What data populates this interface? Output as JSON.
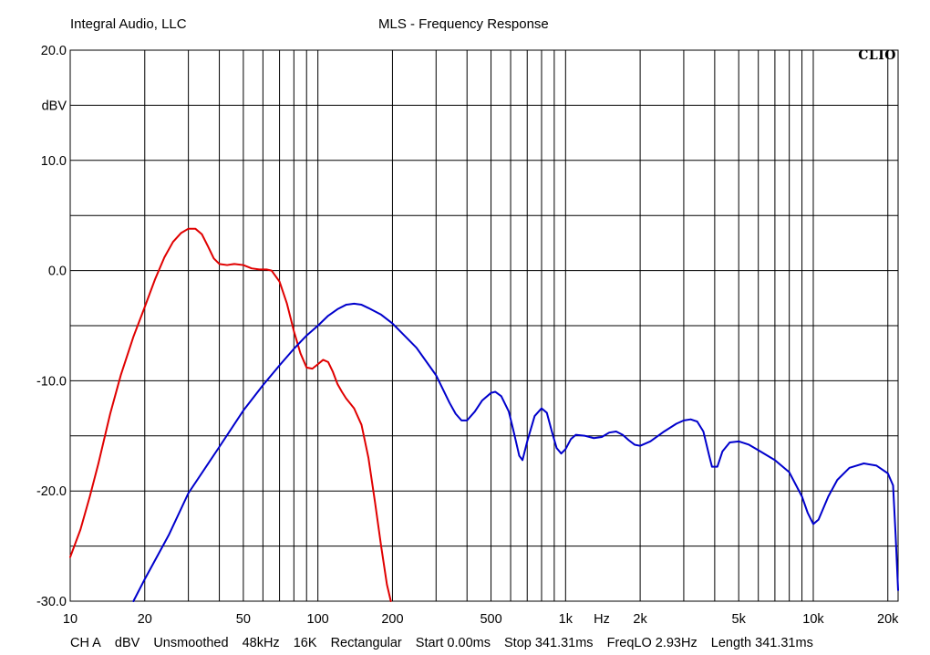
{
  "header": {
    "company": "Integral Audio, LLC",
    "title": "MLS - Frequency Response"
  },
  "brand": "CLIO",
  "footer": {
    "channel": "CH A",
    "unit": "dBV",
    "smoothing": "Unsmoothed",
    "sample_rate": "48kHz",
    "size": "16K",
    "window": "Rectangular",
    "start": "Start 0.00ms",
    "stop": "Stop 341.31ms",
    "freqlo": "FreqLO 2.93Hz",
    "length": "Length 341.31ms"
  },
  "chart_data": {
    "type": "line",
    "title": "MLS - Frequency Response",
    "xlabel": "Hz",
    "ylabel": "dBV",
    "x_scale": "log",
    "xlim": [
      10,
      22000
    ],
    "ylim": [
      -30,
      20
    ],
    "grid": true,
    "y_ticks": [
      {
        "value": 20,
        "label": "20.0"
      },
      {
        "value": 15,
        "label": "dBV"
      },
      {
        "value": 10,
        "label": "10.0"
      },
      {
        "value": 0,
        "label": "0.0"
      },
      {
        "value": -10,
        "label": "-10.0"
      },
      {
        "value": -20,
        "label": "-20.0"
      },
      {
        "value": -30,
        "label": "-30.0"
      }
    ],
    "x_ticks": [
      {
        "value": 10,
        "label": "10"
      },
      {
        "value": 20,
        "label": "20"
      },
      {
        "value": 50,
        "label": "50"
      },
      {
        "value": 100,
        "label": "100"
      },
      {
        "value": 200,
        "label": "200"
      },
      {
        "value": 500,
        "label": "500"
      },
      {
        "value": 1000,
        "label": "1k"
      },
      {
        "value": 1400,
        "label": "Hz"
      },
      {
        "value": 2000,
        "label": "2k"
      },
      {
        "value": 5000,
        "label": "5k"
      },
      {
        "value": 10000,
        "label": "10k"
      },
      {
        "value": 20000,
        "label": "20k"
      }
    ],
    "series": [
      {
        "color": "#e00000",
        "points": [
          [
            10,
            -26
          ],
          [
            11,
            -23.5
          ],
          [
            12,
            -20.5
          ],
          [
            13,
            -17.5
          ],
          [
            14.5,
            -13
          ],
          [
            16,
            -9.5
          ],
          [
            18,
            -6
          ],
          [
            20,
            -3.3
          ],
          [
            22,
            -0.8
          ],
          [
            24,
            1.2
          ],
          [
            26,
            2.6
          ],
          [
            28,
            3.4
          ],
          [
            30,
            3.8
          ],
          [
            32,
            3.8
          ],
          [
            34,
            3.3
          ],
          [
            36,
            2.2
          ],
          [
            38,
            1.1
          ],
          [
            40,
            0.6
          ],
          [
            43,
            0.5
          ],
          [
            46,
            0.6
          ],
          [
            50,
            0.5
          ],
          [
            54,
            0.2
          ],
          [
            58,
            0.1
          ],
          [
            62,
            0.1
          ],
          [
            65,
            0.0
          ],
          [
            70,
            -1.0
          ],
          [
            75,
            -3.0
          ],
          [
            80,
            -5.5
          ],
          [
            85,
            -7.5
          ],
          [
            90,
            -8.8
          ],
          [
            95,
            -8.9
          ],
          [
            100,
            -8.5
          ],
          [
            105,
            -8.1
          ],
          [
            110,
            -8.3
          ],
          [
            115,
            -9.2
          ],
          [
            120,
            -10.3
          ],
          [
            125,
            -11.0
          ],
          [
            130,
            -11.6
          ],
          [
            140,
            -12.5
          ],
          [
            150,
            -14.0
          ],
          [
            160,
            -17.0
          ],
          [
            170,
            -21.0
          ],
          [
            180,
            -25.0
          ],
          [
            190,
            -28.5
          ],
          [
            197,
            -30.0
          ]
        ]
      },
      {
        "color": "#0000cc",
        "points": [
          [
            18,
            -30.0
          ],
          [
            20,
            -28.0
          ],
          [
            25,
            -24.0
          ],
          [
            30,
            -20.2
          ],
          [
            40,
            -16.0
          ],
          [
            50,
            -12.7
          ],
          [
            60,
            -10.4
          ],
          [
            70,
            -8.6
          ],
          [
            80,
            -7.1
          ],
          [
            90,
            -5.9
          ],
          [
            100,
            -5.0
          ],
          [
            110,
            -4.1
          ],
          [
            120,
            -3.5
          ],
          [
            130,
            -3.1
          ],
          [
            140,
            -3.0
          ],
          [
            150,
            -3.1
          ],
          [
            160,
            -3.4
          ],
          [
            180,
            -4.0
          ],
          [
            200,
            -4.8
          ],
          [
            250,
            -7.0
          ],
          [
            300,
            -9.5
          ],
          [
            340,
            -12.0
          ],
          [
            360,
            -13.0
          ],
          [
            380,
            -13.6
          ],
          [
            400,
            -13.6
          ],
          [
            430,
            -12.8
          ],
          [
            460,
            -11.8
          ],
          [
            500,
            -11.1
          ],
          [
            520,
            -11.0
          ],
          [
            550,
            -11.4
          ],
          [
            590,
            -12.8
          ],
          [
            620,
            -14.8
          ],
          [
            650,
            -16.8
          ],
          [
            670,
            -17.2
          ],
          [
            700,
            -15.5
          ],
          [
            750,
            -13.2
          ],
          [
            800,
            -12.5
          ],
          [
            840,
            -12.9
          ],
          [
            880,
            -14.6
          ],
          [
            920,
            -16.1
          ],
          [
            960,
            -16.6
          ],
          [
            1000,
            -16.2
          ],
          [
            1050,
            -15.3
          ],
          [
            1100,
            -14.9
          ],
          [
            1200,
            -15.0
          ],
          [
            1300,
            -15.2
          ],
          [
            1400,
            -15.1
          ],
          [
            1500,
            -14.7
          ],
          [
            1600,
            -14.6
          ],
          [
            1700,
            -14.9
          ],
          [
            1800,
            -15.4
          ],
          [
            1900,
            -15.8
          ],
          [
            2000,
            -15.9
          ],
          [
            2200,
            -15.5
          ],
          [
            2500,
            -14.6
          ],
          [
            2800,
            -13.9
          ],
          [
            3000,
            -13.6
          ],
          [
            3200,
            -13.5
          ],
          [
            3400,
            -13.7
          ],
          [
            3600,
            -14.6
          ],
          [
            3800,
            -16.8
          ],
          [
            3900,
            -17.8
          ],
          [
            4100,
            -17.8
          ],
          [
            4300,
            -16.4
          ],
          [
            4600,
            -15.6
          ],
          [
            5000,
            -15.5
          ],
          [
            5500,
            -15.8
          ],
          [
            6000,
            -16.3
          ],
          [
            7000,
            -17.2
          ],
          [
            8000,
            -18.3
          ],
          [
            9000,
            -20.5
          ],
          [
            9500,
            -22.0
          ],
          [
            10000,
            -23.0
          ],
          [
            10500,
            -22.6
          ],
          [
            11500,
            -20.5
          ],
          [
            12500,
            -19.0
          ],
          [
            14000,
            -17.9
          ],
          [
            16000,
            -17.5
          ],
          [
            18000,
            -17.7
          ],
          [
            20000,
            -18.4
          ],
          [
            21000,
            -19.5
          ],
          [
            21500,
            -24.0
          ],
          [
            22000,
            -29.0
          ]
        ]
      }
    ]
  }
}
